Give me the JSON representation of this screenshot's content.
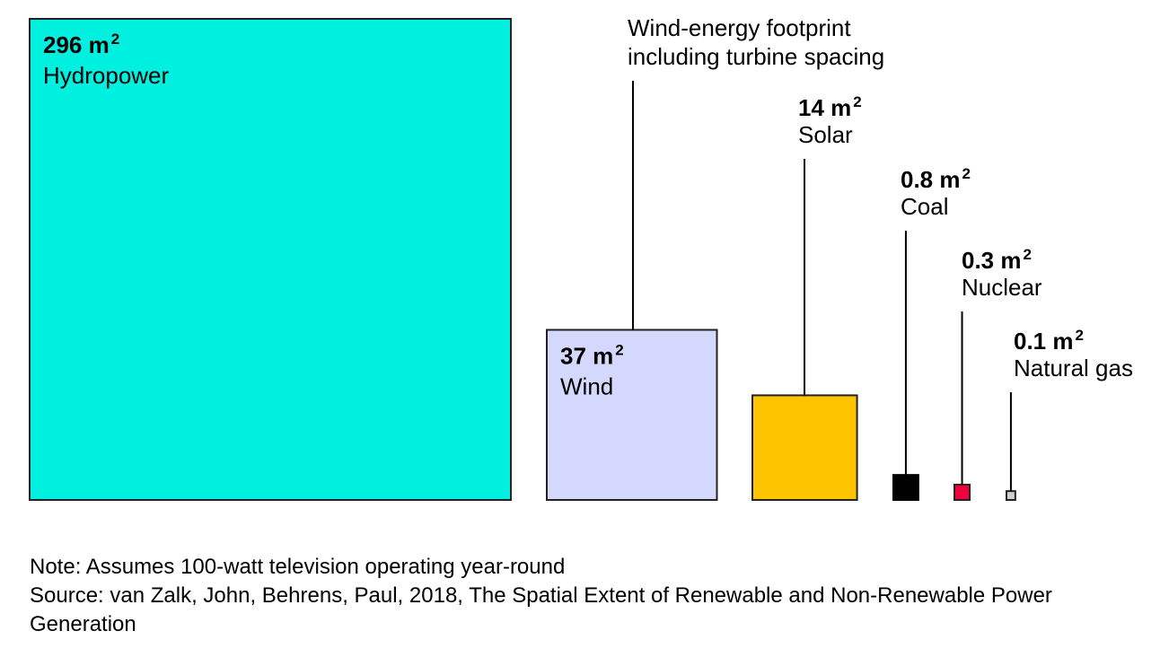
{
  "chart_data": {
    "type": "area",
    "unit": "m",
    "unit_exponent": "2",
    "items": [
      {
        "name": "Hydropower",
        "value": 296,
        "value_label": "296 m",
        "color": "#00F0E0"
      },
      {
        "name": "Wind",
        "value": 37,
        "value_label": "37 m",
        "color": "#D4D8FC"
      },
      {
        "name": "Solar",
        "value": 14,
        "value_label": "14 m",
        "color": "#FFC400"
      },
      {
        "name": "Coal",
        "value": 0.8,
        "value_label": "0.8 m",
        "color": "#000000"
      },
      {
        "name": "Nuclear",
        "value": 0.3,
        "value_label": "0.3 m",
        "color": "#F0003C"
      },
      {
        "name": "Natural gas",
        "value": 0.1,
        "value_label": "0.1 m",
        "color": "#D0D0D0"
      }
    ],
    "annotation": {
      "target": "Wind",
      "lines": [
        "Wind-energy footprint",
        "including turbine spacing"
      ]
    }
  },
  "footer": {
    "note": "Note: Assumes 100-watt television operating year-round",
    "source": "Source: van Zalk, John, Behrens, Paul, 2018, The Spatial Extent of Renewable and Non-Renewable Power Generation"
  }
}
